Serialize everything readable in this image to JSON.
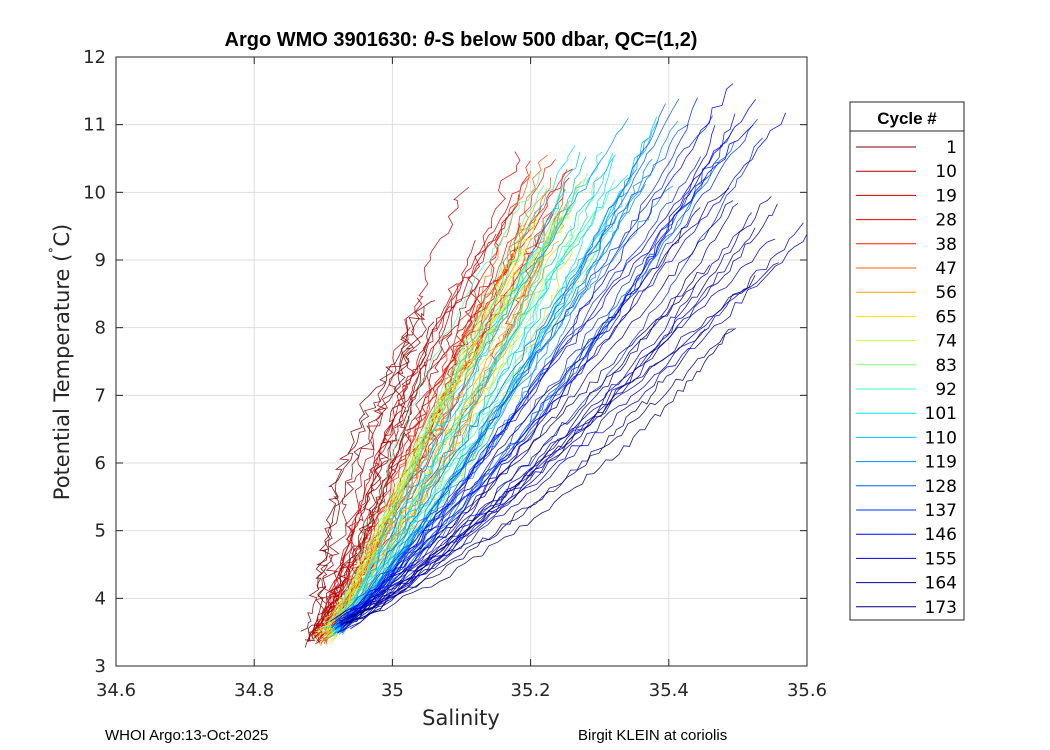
{
  "chart_data": {
    "type": "line",
    "title_prefix": "Argo WMO 3901630: ",
    "title_theta": "θ",
    "title_suffix": "-S below 500 dbar,  QC=(1,2)",
    "xlabel": "Salinity",
    "ylabel_prefix": "Potential Temperature (",
    "ylabel_deg": "˚",
    "ylabel_suffix": "C)",
    "xlim": [
      34.6,
      35.6
    ],
    "ylim": [
      3,
      12
    ],
    "xticks": [
      "34.6",
      "34.8",
      "35",
      "35.2",
      "35.4",
      "35.6"
    ],
    "yticks": [
      "3",
      "4",
      "5",
      "6",
      "7",
      "8",
      "9",
      "10",
      "11",
      "12"
    ],
    "grid": true,
    "legend_title": "Cycle #",
    "legend_placement": "outside-right",
    "series": [
      {
        "name": "1",
        "color": "#800000",
        "start": [
          34.88,
          3.3
        ],
        "end": [
          35.06,
          8.0
        ]
      },
      {
        "name": "10",
        "color": "#a50000",
        "start": [
          34.89,
          3.3
        ],
        "end": [
          35.1,
          8.5
        ]
      },
      {
        "name": "19",
        "color": "#c80000",
        "start": [
          34.89,
          3.3
        ],
        "end": [
          35.14,
          9.5
        ]
      },
      {
        "name": "28",
        "color": "#e60000",
        "start": [
          34.89,
          3.3
        ],
        "end": [
          35.22,
          10.1
        ]
      },
      {
        "name": "38",
        "color": "#ff2000",
        "start": [
          34.9,
          3.3
        ],
        "end": [
          35.24,
          10.0
        ]
      },
      {
        "name": "47",
        "color": "#ff6000",
        "start": [
          34.9,
          3.3
        ],
        "end": [
          35.25,
          10.0
        ]
      },
      {
        "name": "56",
        "color": "#ffa000",
        "start": [
          34.9,
          3.35
        ],
        "end": [
          35.24,
          9.8
        ]
      },
      {
        "name": "65",
        "color": "#ffe000",
        "start": [
          34.9,
          3.35
        ],
        "end": [
          35.22,
          9.6
        ]
      },
      {
        "name": "74",
        "color": "#c0ff40",
        "start": [
          34.9,
          3.35
        ],
        "end": [
          35.24,
          9.7
        ]
      },
      {
        "name": "83",
        "color": "#80ff80",
        "start": [
          34.91,
          3.4
        ],
        "end": [
          35.25,
          9.8
        ]
      },
      {
        "name": "92",
        "color": "#40ffc0",
        "start": [
          34.91,
          3.4
        ],
        "end": [
          35.27,
          10.0
        ]
      },
      {
        "name": "101",
        "color": "#00e0ff",
        "start": [
          34.91,
          3.4
        ],
        "end": [
          35.3,
          10.3
        ]
      },
      {
        "name": "110",
        "color": "#00c0ff",
        "start": [
          34.92,
          3.45
        ],
        "end": [
          35.33,
          10.5
        ]
      },
      {
        "name": "119",
        "color": "#0090ff",
        "start": [
          34.92,
          3.45
        ],
        "end": [
          35.38,
          10.6
        ]
      },
      {
        "name": "128",
        "color": "#0060ff",
        "start": [
          34.92,
          3.5
        ],
        "end": [
          35.45,
          10.8
        ]
      },
      {
        "name": "137",
        "color": "#0030ff",
        "start": [
          34.92,
          3.5
        ],
        "end": [
          35.48,
          11.0
        ]
      },
      {
        "name": "146",
        "color": "#0000ff",
        "start": [
          34.92,
          3.5
        ],
        "end": [
          35.52,
          11.1
        ]
      },
      {
        "name": "155",
        "color": "#0000d0",
        "start": [
          34.92,
          3.5
        ],
        "end": [
          35.55,
          9.5
        ]
      },
      {
        "name": "164",
        "color": "#0000a0",
        "start": [
          34.93,
          3.55
        ],
        "end": [
          35.5,
          10.0
        ]
      },
      {
        "name": "173",
        "color": "#000080",
        "start": [
          34.93,
          3.55
        ],
        "end": [
          35.48,
          8.5
        ]
      }
    ]
  },
  "footer": {
    "left": "WHOI Argo:13-Oct-2025",
    "right": "Birgit KLEIN at coriolis"
  }
}
